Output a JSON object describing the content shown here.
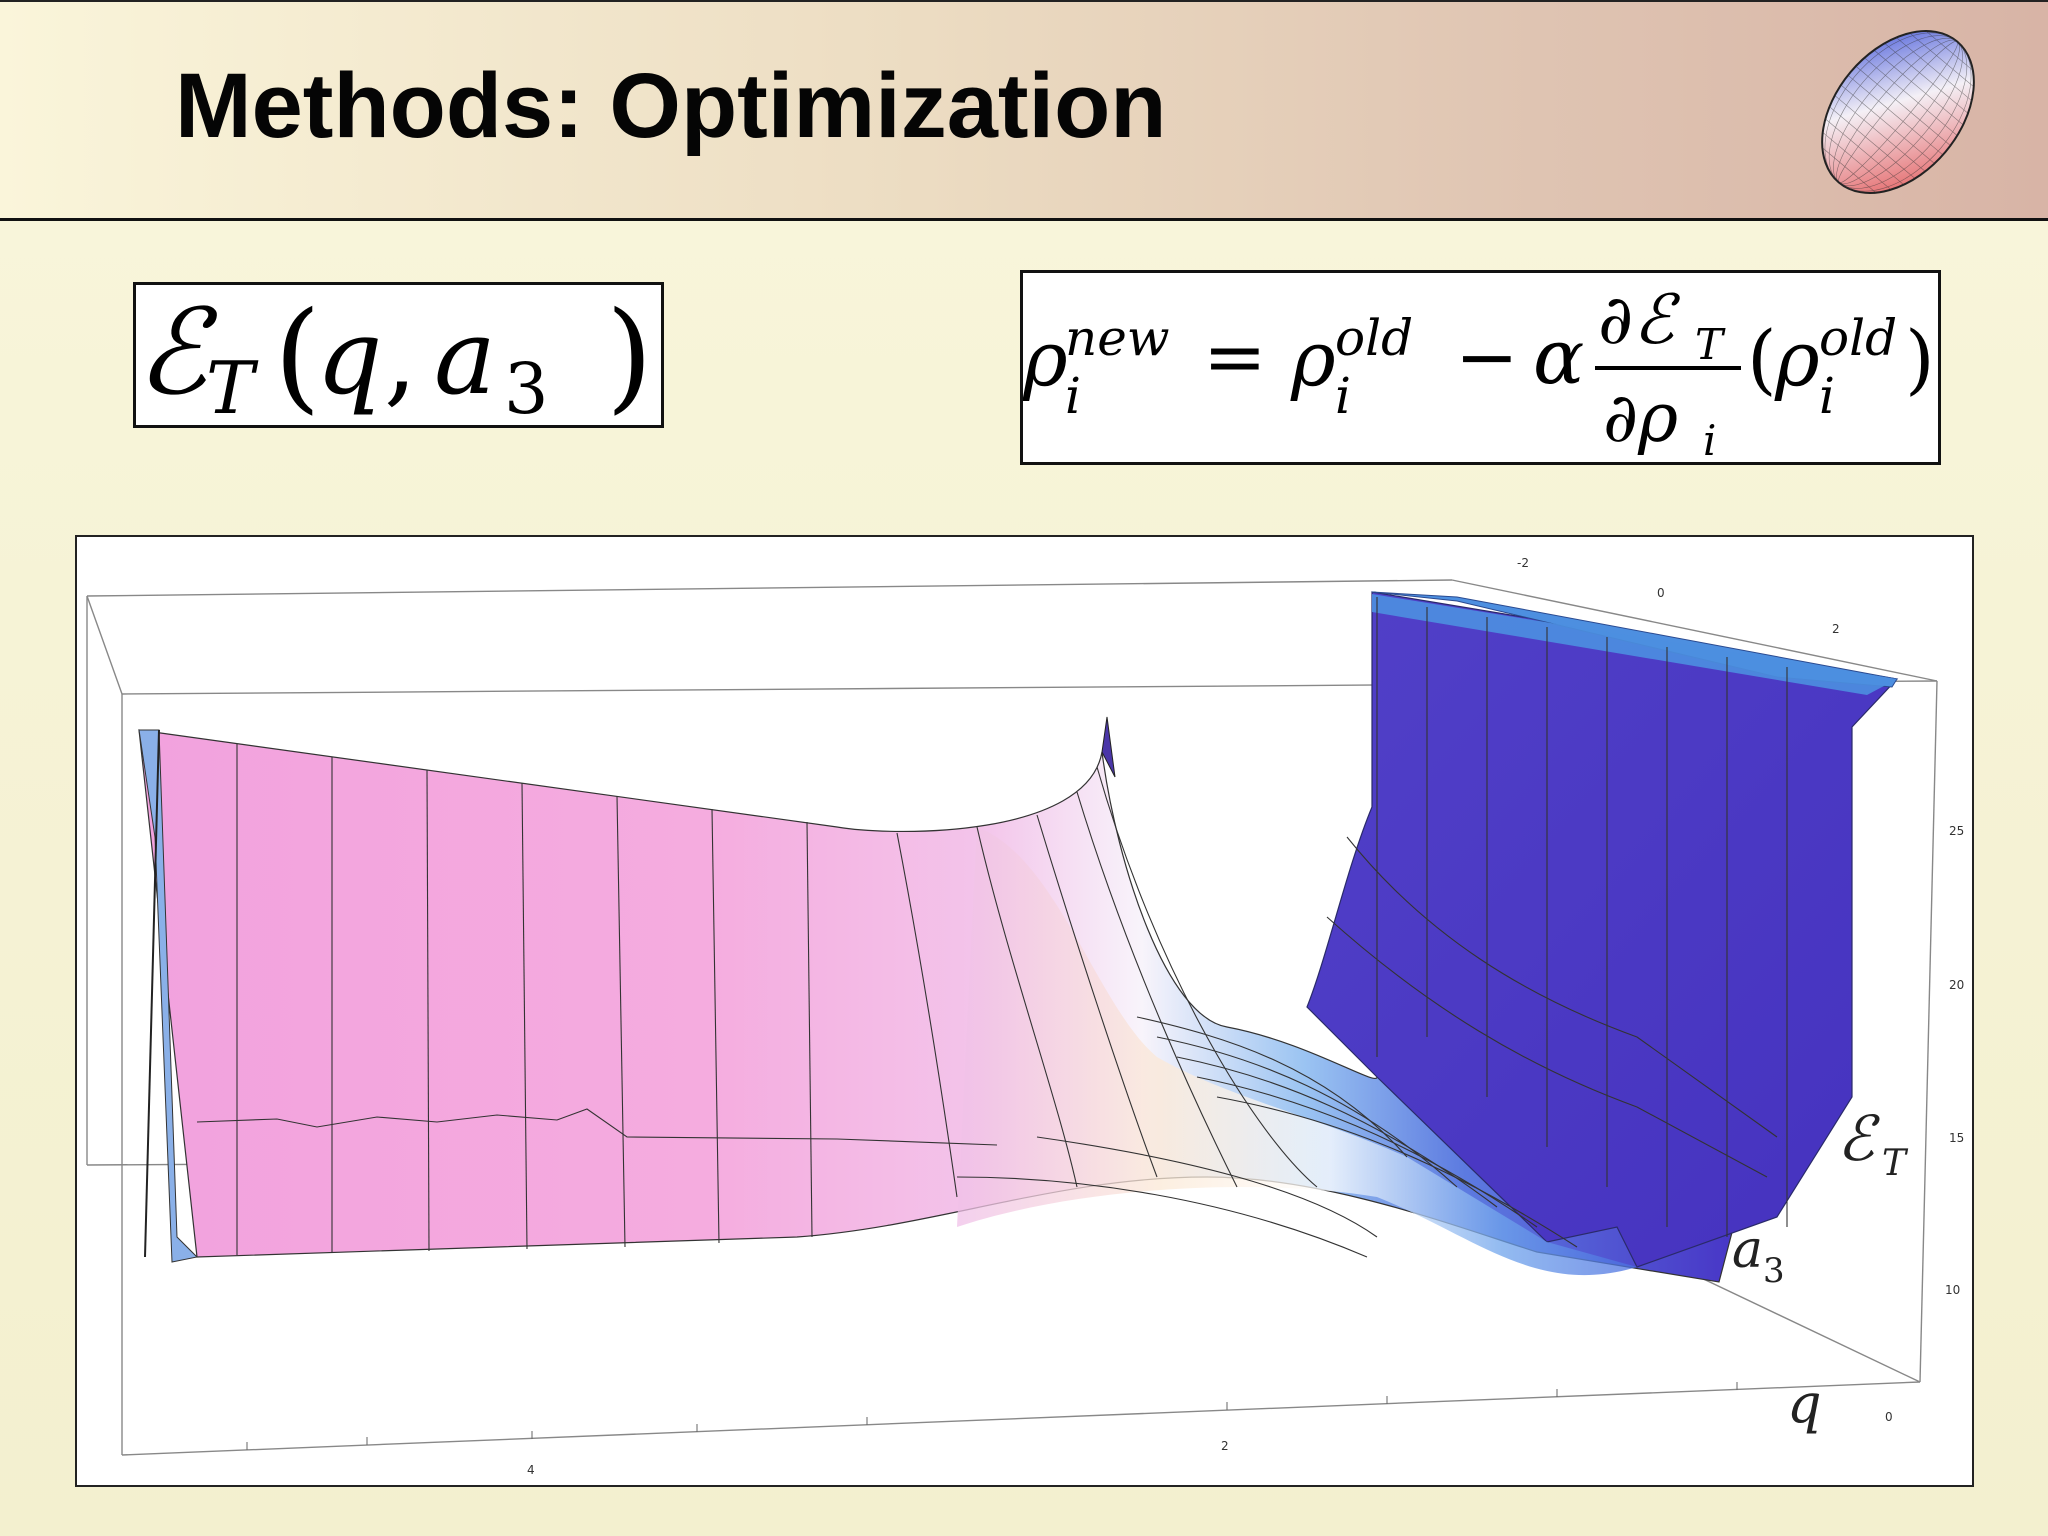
{
  "slide": {
    "title": "Methods: Optimization"
  },
  "logo": {
    "icon": "deformed-nucleus-icon",
    "shape": "prolate spheroid mesh",
    "colors": [
      "#3a4fd8",
      "#ffffff",
      "#e55a5a"
    ]
  },
  "formula_left": {
    "latex": "\\mathcal{E}_T(q, a_3)"
  },
  "formula_right": {
    "latex": "\\rho_i^{new} = \\rho_i^{old} - \\alpha \\frac{\\partial \\mathcal{E}_T}{\\partial \\rho_i}(\\rho_i^{old})"
  },
  "plot": {
    "type": "3d-surface",
    "axis_labels": {
      "z": "ℰ",
      "z_sub": "T",
      "a3": "a",
      "a3_sub": "3",
      "q": "q"
    },
    "z_ticks": [
      "25",
      "20",
      "15",
      "10"
    ],
    "a3_ticks": [
      "-2",
      "0",
      "2"
    ],
    "q_ticks": [
      "4",
      "2",
      "0"
    ],
    "colors": {
      "low_q_side": "#f2a6e0",
      "valley": "#ffffff",
      "high_side": "#4a36c8",
      "ridge": "#4d8fe0"
    }
  }
}
